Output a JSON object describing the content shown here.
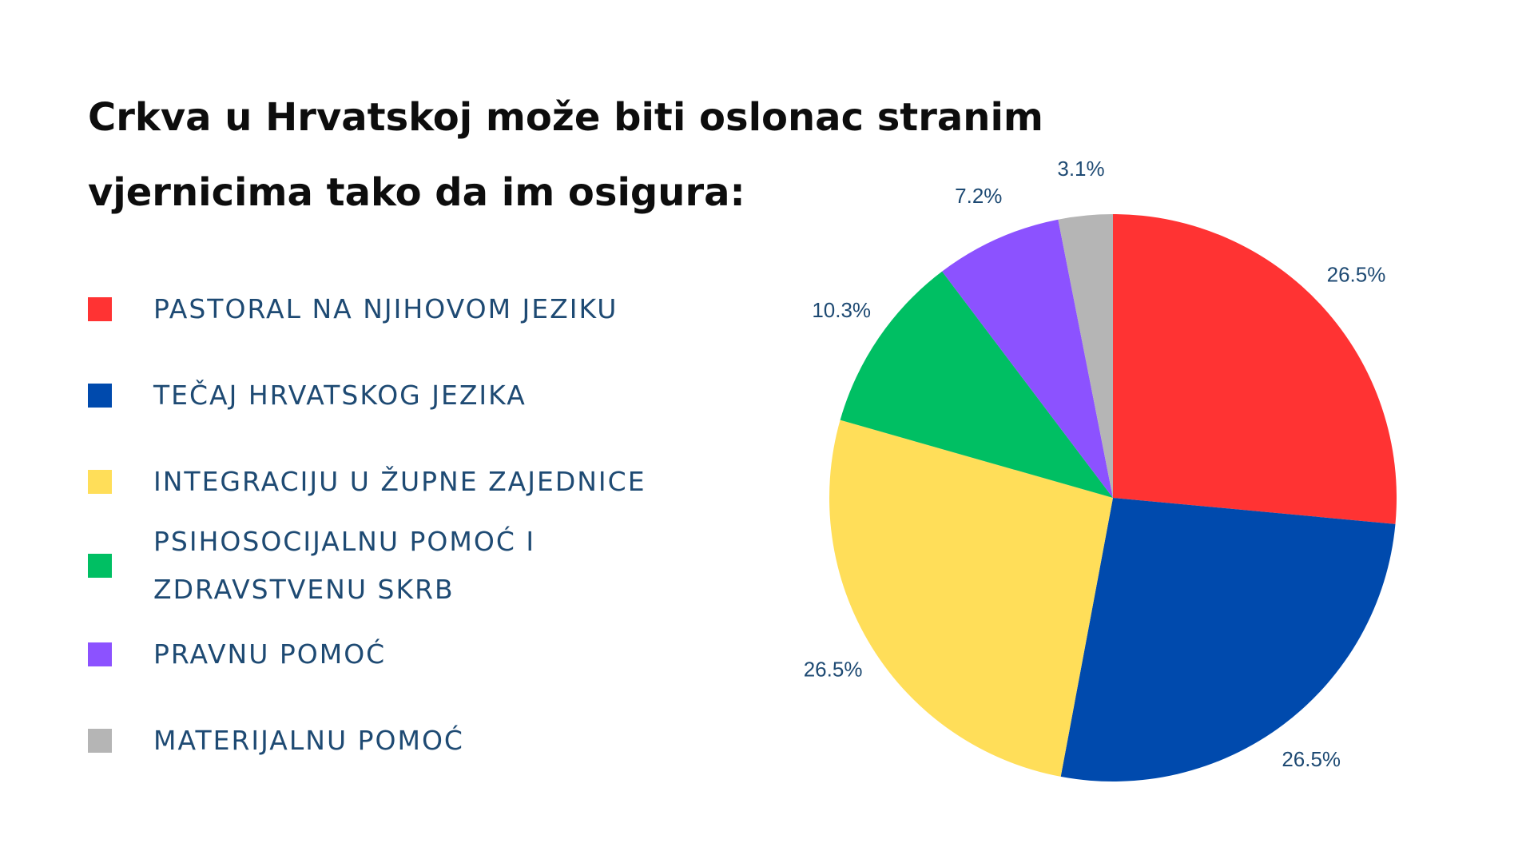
{
  "title_lines": [
    "Crkva u Hrvatskoj može biti oslonac stranim",
    "vjernicima tako da im osigura:"
  ],
  "chart_data": {
    "type": "pie",
    "title": "Crkva u Hrvatskoj može biti oslonac stranim vjernicima tako da im osigura:",
    "legend_position": "left",
    "start_angle": "12 o'clock, clockwise",
    "slices": [
      {
        "label": "PASTORAL NA NJIHOVOM JEZIKU",
        "value": 26.5,
        "value_label": "26.5%",
        "color": "#ff3333"
      },
      {
        "label": "TEČAJ HRVATSKOG JEZIKA",
        "value": 26.5,
        "value_label": "26.5%",
        "color": "#004aad"
      },
      {
        "label": "INTEGRACIJU U ŽUPNE ZAJEDNICE",
        "value": 26.5,
        "value_label": "26.5%",
        "color": "#ffde59"
      },
      {
        "label": "PSIHOSOCIJALNU POMOĆ I\nZDRAVSTVENU SKRB",
        "value": 10.3,
        "value_label": "10.3%",
        "color": "#00bf63"
      },
      {
        "label": "PRAVNU POMOĆ",
        "value": 7.2,
        "value_label": "7.2%",
        "color": "#8c52ff"
      },
      {
        "label": "MATERIJALNU POMOĆ",
        "value": 3.1,
        "value_label": "3.1%",
        "color": "#b5b5b5"
      }
    ]
  }
}
